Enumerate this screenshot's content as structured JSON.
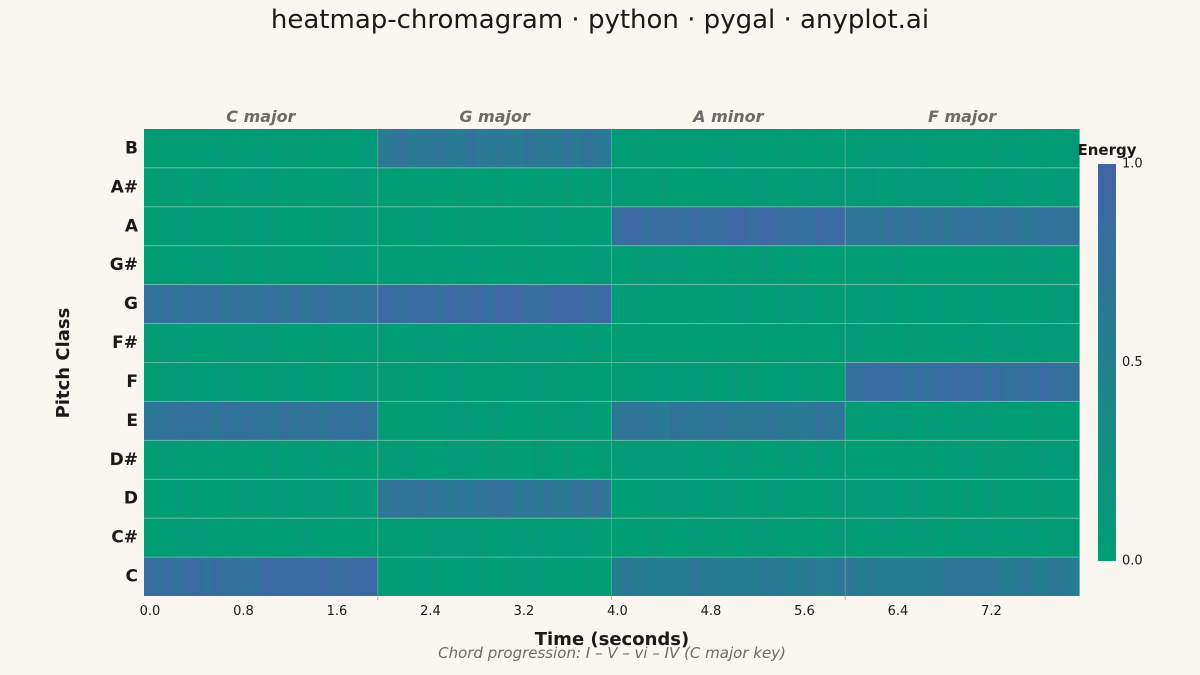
{
  "colors": {
    "background": "#faf6f0",
    "low": "#009e73",
    "high": "#4363a8",
    "row_separator": "#faf6f0",
    "section_line": "#9a9a9a"
  },
  "chart_data": {
    "type": "heatmap",
    "title": "heatmap-chromagram · python · pygal · anyplot.ai",
    "subtitle": "Chord progression: I – V – vi – IV (C major key)",
    "xlabel": "Time (seconds)",
    "ylabel": "Pitch Class",
    "x_ticks": [
      "0.0",
      "0.8",
      "1.6",
      "2.4",
      "3.2",
      "4.0",
      "4.8",
      "5.6",
      "6.4",
      "7.2"
    ],
    "x_tick_values": [
      0.0,
      0.8,
      1.6,
      2.4,
      3.2,
      4.0,
      4.8,
      5.6,
      6.4,
      7.2
    ],
    "xlim": [
      0,
      8
    ],
    "pitch_classes": [
      "B",
      "A#",
      "A",
      "G#",
      "G",
      "F#",
      "F",
      "E",
      "D#",
      "D",
      "C#",
      "C"
    ],
    "sections": [
      {
        "label": "C major",
        "start": 0,
        "end": 2,
        "notes": {
          "C": 0.82,
          "E": 0.72,
          "G": 0.75
        }
      },
      {
        "label": "G major",
        "start": 2,
        "end": 4,
        "notes": {
          "G": 0.85,
          "B": 0.66,
          "D": 0.7
        }
      },
      {
        "label": "A minor",
        "start": 4,
        "end": 6,
        "notes": {
          "A": 0.84,
          "C": 0.6,
          "E": 0.68
        }
      },
      {
        "label": "F major",
        "start": 6,
        "end": 8,
        "notes": {
          "F": 0.8,
          "A": 0.7,
          "C": 0.62
        }
      }
    ],
    "background_energy": 0.04,
    "colorbar": {
      "title": "Energy",
      "min": 0.0,
      "max": 1.0,
      "ticks": [
        "1.0",
        "0.5",
        "0.0"
      ],
      "tick_values": [
        1.0,
        0.5,
        0.0
      ]
    }
  }
}
